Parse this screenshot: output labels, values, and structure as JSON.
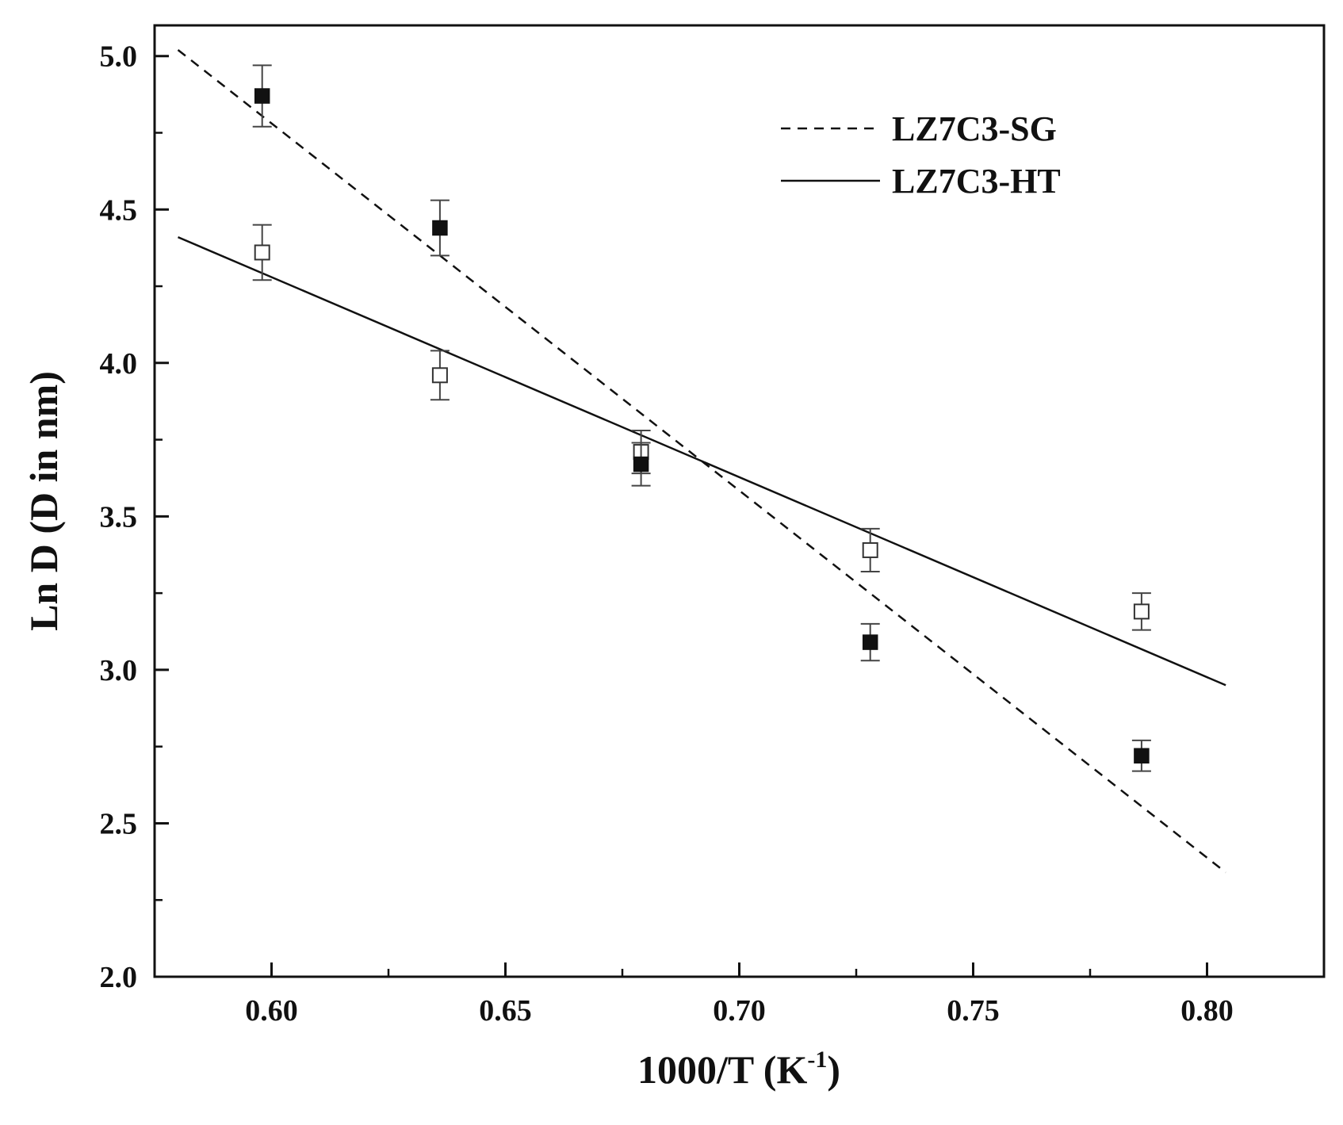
{
  "chart_data": {
    "type": "scatter",
    "xlabel_main": "1000/T (K",
    "xlabel_sup": "-1",
    "xlabel_end": ")",
    "ylabel": "Ln D (D in nm)",
    "xlim": [
      0.575,
      0.825
    ],
    "ylim": [
      2.0,
      5.1
    ],
    "x_ticks": [
      "0.60",
      "0.65",
      "0.70",
      "0.75",
      "0.80"
    ],
    "y_ticks": [
      "2.0",
      "2.5",
      "3.0",
      "3.5",
      "4.0",
      "4.5",
      "5.0"
    ],
    "grid": false,
    "legend_position": "top-right",
    "series": [
      {
        "name": "LZ7C3-SG",
        "marker": "filled-square",
        "line_style": "dashed",
        "color": "#111111",
        "x": [
          0.598,
          0.636,
          0.679,
          0.728,
          0.786
        ],
        "y": [
          4.87,
          4.44,
          3.67,
          3.09,
          2.72
        ],
        "error": [
          0.1,
          0.09,
          0.07,
          0.06,
          0.05
        ],
        "fit_line": {
          "x": [
            0.58,
            0.804
          ],
          "y": [
            5.02,
            2.34
          ]
        }
      },
      {
        "name": "LZ7C3-HT",
        "marker": "open-square",
        "line_style": "solid",
        "color": "#111111",
        "x": [
          0.598,
          0.636,
          0.679,
          0.728,
          0.786
        ],
        "y": [
          4.36,
          3.96,
          3.71,
          3.39,
          3.19
        ],
        "error": [
          0.09,
          0.08,
          0.07,
          0.07,
          0.06
        ],
        "fit_line": {
          "x": [
            0.58,
            0.804
          ],
          "y": [
            4.41,
            2.95
          ]
        }
      }
    ]
  }
}
